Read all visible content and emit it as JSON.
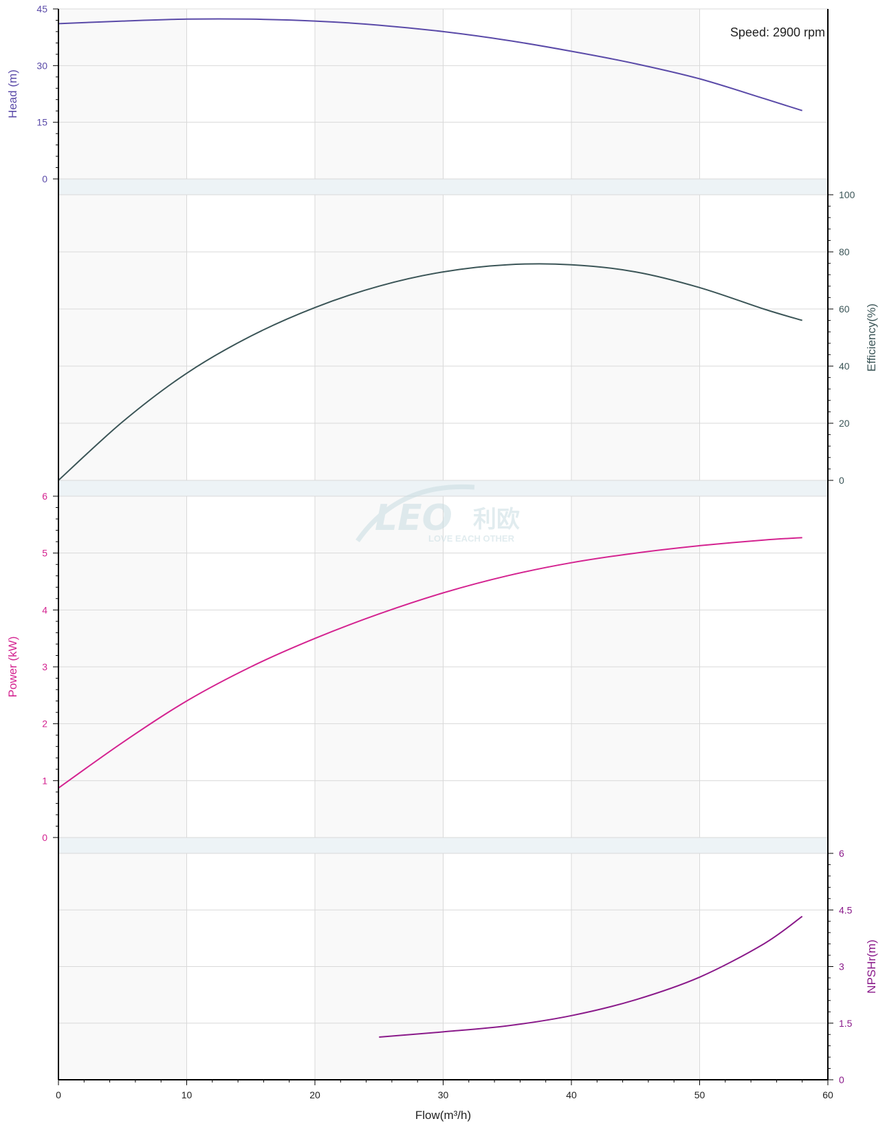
{
  "chart_data": {
    "type": "line",
    "annotation": "Speed: 2900 rpm",
    "watermark": {
      "logo": "LEO",
      "chinese": "利欧",
      "tagline": "LOVE EACH OTHER"
    },
    "x_axis": {
      "label": "Flow(m³/h)",
      "range": [
        0,
        60
      ],
      "ticks": [
        "0",
        "10",
        "20",
        "30",
        "40",
        "50",
        "60"
      ]
    },
    "panels": [
      {
        "name": "head",
        "axis_side": "left",
        "axis_label": "Head (m)",
        "color": "#5a4aa8",
        "range": [
          0,
          45
        ],
        "ticks": [
          "0",
          "15",
          "30",
          "45"
        ],
        "tick_values": [
          0,
          15,
          30,
          45
        ],
        "series": {
          "name": "Head (m)",
          "x": [
            0,
            5,
            10,
            15,
            20,
            25,
            30,
            35,
            40,
            45,
            50,
            55,
            58
          ],
          "y": [
            41.1,
            41.8,
            42.3,
            42.3,
            41.8,
            40.7,
            39.0,
            36.7,
            33.8,
            30.5,
            26.5,
            21.3,
            18.1
          ]
        }
      },
      {
        "name": "efficiency",
        "axis_side": "right",
        "axis_label": "Efficiency(%)",
        "color": "#3b5557",
        "range": [
          0,
          100
        ],
        "ticks": [
          "0",
          "20",
          "40",
          "60",
          "80",
          "100"
        ],
        "tick_values": [
          0,
          20,
          40,
          60,
          80,
          100
        ],
        "series": {
          "name": "Efficiency(%)",
          "x": [
            0,
            5,
            10,
            15,
            20,
            25,
            30,
            35,
            40,
            45,
            50,
            55,
            58
          ],
          "y": [
            0,
            20.5,
            37.5,
            50.5,
            60.5,
            68,
            73,
            75.5,
            75.5,
            73,
            67.5,
            60,
            56
          ]
        }
      },
      {
        "name": "power",
        "axis_side": "left",
        "axis_label": "Power (kW)",
        "color": "#d42390",
        "range": [
          0,
          6
        ],
        "ticks": [
          "0",
          "1",
          "2",
          "3",
          "4",
          "5",
          "6"
        ],
        "tick_values": [
          0,
          1,
          2,
          3,
          4,
          5,
          6
        ],
        "series": {
          "name": "Power (kW)",
          "x": [
            0,
            5,
            10,
            15,
            20,
            25,
            30,
            35,
            40,
            45,
            50,
            55,
            58
          ],
          "y": [
            0.87,
            1.67,
            2.4,
            3.0,
            3.5,
            3.93,
            4.3,
            4.6,
            4.83,
            5.0,
            5.13,
            5.23,
            5.27
          ]
        }
      },
      {
        "name": "npshr",
        "axis_side": "right",
        "axis_label": "NPSHr(m)",
        "color": "#8a1a8a",
        "range": [
          0,
          6
        ],
        "ticks": [
          "0",
          "1.5",
          "3",
          "4.5",
          "6"
        ],
        "tick_values": [
          0,
          1.5,
          3,
          4.5,
          6
        ],
        "series": {
          "name": "NPSHr(m)",
          "x": [
            25,
            30,
            35,
            40,
            45,
            50,
            55,
            58
          ],
          "y": [
            1.13,
            1.27,
            1.43,
            1.7,
            2.12,
            2.72,
            3.6,
            4.33
          ]
        }
      }
    ]
  }
}
